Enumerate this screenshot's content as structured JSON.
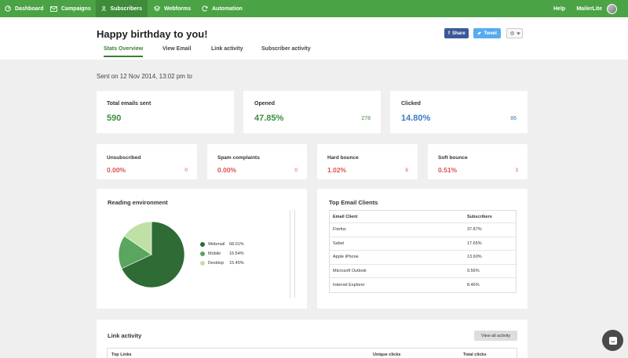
{
  "nav": {
    "items": [
      {
        "label": "Dashboard",
        "icon": "dashboard-icon"
      },
      {
        "label": "Campaigns",
        "icon": "envelope-icon"
      },
      {
        "label": "Subscribers",
        "icon": "user-icon"
      },
      {
        "label": "Webforms",
        "icon": "layers-icon"
      },
      {
        "label": "Automation",
        "icon": "refresh-icon"
      }
    ],
    "help": "Help",
    "account": "MailerLite"
  },
  "header": {
    "title": "Happy birthday to you!",
    "share_facebook": "Share",
    "share_twitter": "Tweet",
    "settings_icon": "gear-icon",
    "tabs": [
      "Stats Overview",
      "View Email",
      "Link activity",
      "Subscriber activity"
    ],
    "active_tab": "Stats Overview"
  },
  "sent_on": "Sent on 12 Nov 2014, 13:02 pm to",
  "stats": {
    "total": {
      "label": "Total emails sent",
      "value": "590"
    },
    "opened": {
      "label": "Opened",
      "value": "47.85%",
      "count": "278"
    },
    "clicked": {
      "label": "Clicked",
      "value": "14.80%",
      "count": "86"
    },
    "unsubscribed": {
      "label": "Unsubscribed",
      "value": "0.00%",
      "count": "0"
    },
    "spam": {
      "label": "Spam complaints",
      "value": "0.00%",
      "count": "0"
    },
    "hard": {
      "label": "Hard bounce",
      "value": "1.02%",
      "count": "6"
    },
    "soft": {
      "label": "Soft bounce",
      "value": "0.51%",
      "count": "3"
    }
  },
  "reading": {
    "title": "Reading environment",
    "segments": [
      {
        "name": "Webmail",
        "percent_label": "68.01%",
        "value": 68.01,
        "color": "#2e6b35"
      },
      {
        "name": "Mobile",
        "percent_label": "16.54%",
        "value": 16.54,
        "color": "#5aa65f"
      },
      {
        "name": "Desktop",
        "percent_label": "15.45%",
        "value": 15.45,
        "color": "#bfe0a6"
      }
    ]
  },
  "clients": {
    "title": "Top Email Clients",
    "col_client": "Email Client",
    "col_subscribers": "Subscribers",
    "rows": [
      {
        "client": "Firefox",
        "share": "37.87%"
      },
      {
        "client": "Safari",
        "share": "17.65%"
      },
      {
        "client": "Apple iPhone",
        "share": "13.60%"
      },
      {
        "client": "Microsoft Outlook",
        "share": "9.56%"
      },
      {
        "client": "Internet Explorer",
        "share": "8.46%"
      }
    ]
  },
  "link_activity": {
    "title": "Link activity",
    "view_all": "View all activity",
    "col_links": "Top Links",
    "col_unique": "Unique clicks",
    "col_total": "Total clicks"
  },
  "colors": {
    "brand_green": "#4aa344",
    "opened_green": "#3b8f3e",
    "clicked_blue": "#3a7dbf",
    "negative_red": "#d9534f"
  }
}
